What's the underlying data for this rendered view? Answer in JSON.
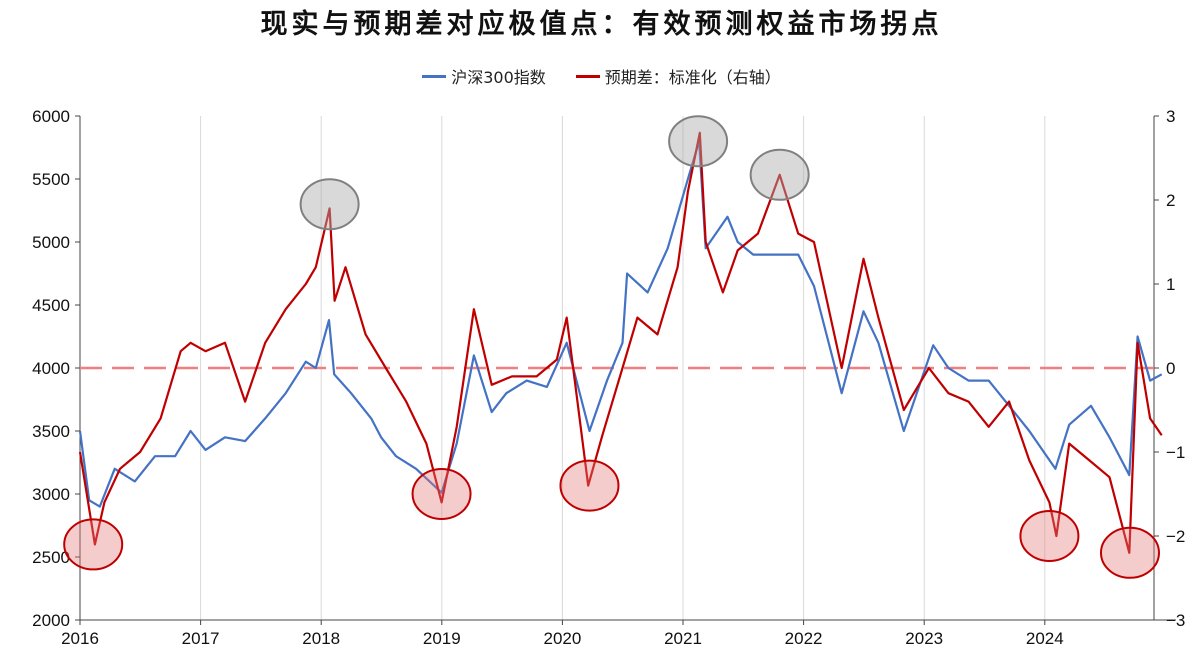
{
  "chart_data": {
    "type": "line",
    "title": "现实与预期差对应极值点：有效预测权益市场拐点",
    "x_ticks": [
      "2016",
      "2017",
      "2018",
      "2019",
      "2020",
      "2021",
      "2022",
      "2023",
      "2024"
    ],
    "y_left": {
      "lim": [
        2000,
        6000
      ],
      "ticks": [
        "6000",
        "5500",
        "5000",
        "4500",
        "4000",
        "3500",
        "3000",
        "2500",
        "2000"
      ]
    },
    "y_right": {
      "lim": [
        -3,
        3
      ],
      "ticks": [
        "3",
        "2",
        "1",
        "0",
        "−1",
        "−2",
        "−3"
      ]
    },
    "reference_line": {
      "axis": "right",
      "value": 0,
      "style": "dashed",
      "color": "#f08080"
    },
    "series": [
      {
        "name": "沪深300指数",
        "axis": "left",
        "color": "#4472c4",
        "points": [
          [
            "2016-01-01",
            3500
          ],
          [
            "2016-01-29",
            2950
          ],
          [
            "2016-03-01",
            2900
          ],
          [
            "2016-04-15",
            3200
          ],
          [
            "2016-06-15",
            3100
          ],
          [
            "2016-08-15",
            3300
          ],
          [
            "2016-10-15",
            3300
          ],
          [
            "2016-12-01",
            3500
          ],
          [
            "2017-01-15",
            3350
          ],
          [
            "2017-03-15",
            3450
          ],
          [
            "2017-05-15",
            3420
          ],
          [
            "2017-07-15",
            3600
          ],
          [
            "2017-09-15",
            3800
          ],
          [
            "2017-11-15",
            4050
          ],
          [
            "2017-12-15",
            4000
          ],
          [
            "2018-01-24",
            4380
          ],
          [
            "2018-02-09",
            3950
          ],
          [
            "2018-04-01",
            3800
          ],
          [
            "2018-06-01",
            3600
          ],
          [
            "2018-07-01",
            3450
          ],
          [
            "2018-08-15",
            3300
          ],
          [
            "2018-10-15",
            3200
          ],
          [
            "2018-12-31",
            3010
          ],
          [
            "2019-02-15",
            3400
          ],
          [
            "2019-04-08",
            4100
          ],
          [
            "2019-06-01",
            3650
          ],
          [
            "2019-07-15",
            3800
          ],
          [
            "2019-09-15",
            3900
          ],
          [
            "2019-11-15",
            3850
          ],
          [
            "2020-01-14",
            4200
          ],
          [
            "2020-03-23",
            3500
          ],
          [
            "2020-05-15",
            3900
          ],
          [
            "2020-07-01",
            4200
          ],
          [
            "2020-07-15",
            4750
          ],
          [
            "2020-09-15",
            4600
          ],
          [
            "2020-11-15",
            4950
          ],
          [
            "2021-01-15",
            5500
          ],
          [
            "2021-02-18",
            5800
          ],
          [
            "2021-03-10",
            4950
          ],
          [
            "2021-05-15",
            5200
          ],
          [
            "2021-06-15",
            5000
          ],
          [
            "2021-08-01",
            4900
          ],
          [
            "2021-10-15",
            4900
          ],
          [
            "2021-12-15",
            4900
          ],
          [
            "2022-02-01",
            4650
          ],
          [
            "2022-04-26",
            3800
          ],
          [
            "2022-07-01",
            4450
          ],
          [
            "2022-08-15",
            4200
          ],
          [
            "2022-10-31",
            3500
          ],
          [
            "2023-01-28",
            4180
          ],
          [
            "2023-03-15",
            4000
          ],
          [
            "2023-05-15",
            3900
          ],
          [
            "2023-07-15",
            3900
          ],
          [
            "2023-09-15",
            3700
          ],
          [
            "2023-11-15",
            3500
          ],
          [
            "2024-02-02",
            3200
          ],
          [
            "2024-03-15",
            3550
          ],
          [
            "2024-05-20",
            3700
          ],
          [
            "2024-07-15",
            3450
          ],
          [
            "2024-09-13",
            3150
          ],
          [
            "2024-10-08",
            4250
          ],
          [
            "2024-11-15",
            3900
          ],
          [
            "2024-12-20",
            3950
          ]
        ]
      },
      {
        "name": "预期差：标准化（右轴）",
        "axis": "right",
        "color": "#c00000",
        "points": [
          [
            "2016-01-01",
            -1.0
          ],
          [
            "2016-02-15",
            -2.1
          ],
          [
            "2016-03-15",
            -1.6
          ],
          [
            "2016-05-01",
            -1.2
          ],
          [
            "2016-07-01",
            -1.0
          ],
          [
            "2016-09-01",
            -0.6
          ],
          [
            "2016-11-01",
            0.2
          ],
          [
            "2016-12-01",
            0.3
          ],
          [
            "2017-01-15",
            0.2
          ],
          [
            "2017-03-15",
            0.3
          ],
          [
            "2017-05-15",
            -0.4
          ],
          [
            "2017-07-15",
            0.3
          ],
          [
            "2017-09-15",
            0.7
          ],
          [
            "2017-11-15",
            1.0
          ],
          [
            "2017-12-15",
            1.2
          ],
          [
            "2018-01-26",
            1.9
          ],
          [
            "2018-02-10",
            0.8
          ],
          [
            "2018-03-15",
            1.2
          ],
          [
            "2018-05-15",
            0.4
          ],
          [
            "2018-07-15",
            0.0
          ],
          [
            "2018-09-15",
            -0.4
          ],
          [
            "2018-11-15",
            -0.9
          ],
          [
            "2018-12-31",
            -1.6
          ],
          [
            "2019-02-15",
            -0.7
          ],
          [
            "2019-04-08",
            0.7
          ],
          [
            "2019-06-01",
            -0.2
          ],
          [
            "2019-08-01",
            -0.1
          ],
          [
            "2019-10-15",
            -0.1
          ],
          [
            "2019-12-15",
            0.1
          ],
          [
            "2020-01-14",
            0.6
          ],
          [
            "2020-03-19",
            -1.4
          ],
          [
            "2020-05-01",
            -0.8
          ],
          [
            "2020-07-01",
            0.0
          ],
          [
            "2020-08-15",
            0.6
          ],
          [
            "2020-10-15",
            0.4
          ],
          [
            "2020-12-15",
            1.2
          ],
          [
            "2021-01-15",
            2.1
          ],
          [
            "2021-02-20",
            2.8
          ],
          [
            "2021-03-10",
            1.5
          ],
          [
            "2021-05-01",
            0.9
          ],
          [
            "2021-06-15",
            1.4
          ],
          [
            "2021-08-15",
            1.6
          ],
          [
            "2021-10-20",
            2.3
          ],
          [
            "2021-12-15",
            1.6
          ],
          [
            "2022-02-01",
            1.5
          ],
          [
            "2022-04-26",
            0.0
          ],
          [
            "2022-07-01",
            1.3
          ],
          [
            "2022-08-15",
            0.6
          ],
          [
            "2022-10-31",
            -0.5
          ],
          [
            "2023-01-15",
            0.0
          ],
          [
            "2023-03-15",
            -0.3
          ],
          [
            "2023-05-15",
            -0.4
          ],
          [
            "2023-07-15",
            -0.7
          ],
          [
            "2023-09-15",
            -0.4
          ],
          [
            "2023-11-15",
            -1.1
          ],
          [
            "2024-01-15",
            -1.6
          ],
          [
            "2024-02-05",
            -2.0
          ],
          [
            "2024-03-15",
            -0.9
          ],
          [
            "2024-05-15",
            -1.1
          ],
          [
            "2024-07-15",
            -1.3
          ],
          [
            "2024-09-13",
            -2.2
          ],
          [
            "2024-10-08",
            0.3
          ],
          [
            "2024-11-15",
            -0.6
          ],
          [
            "2024-12-20",
            -0.8
          ]
        ]
      }
    ],
    "extreme_markers": [
      {
        "date": "2016-02-10",
        "value": -2.1,
        "type": "low",
        "color": "#c00000"
      },
      {
        "date": "2018-01-26",
        "value": 1.95,
        "type": "high",
        "color": "#808080"
      },
      {
        "date": "2018-12-31",
        "value": -1.5,
        "type": "low",
        "color": "#c00000"
      },
      {
        "date": "2020-03-23",
        "value": -1.4,
        "type": "low",
        "color": "#c00000"
      },
      {
        "date": "2021-02-15",
        "value": 2.7,
        "type": "high",
        "color": "#808080"
      },
      {
        "date": "2021-10-20",
        "value": 2.3,
        "type": "high",
        "color": "#808080"
      },
      {
        "date": "2024-01-15",
        "value": -2.0,
        "type": "low",
        "color": "#c00000"
      },
      {
        "date": "2024-09-15",
        "value": -2.2,
        "type": "low",
        "color": "#c00000"
      }
    ]
  }
}
